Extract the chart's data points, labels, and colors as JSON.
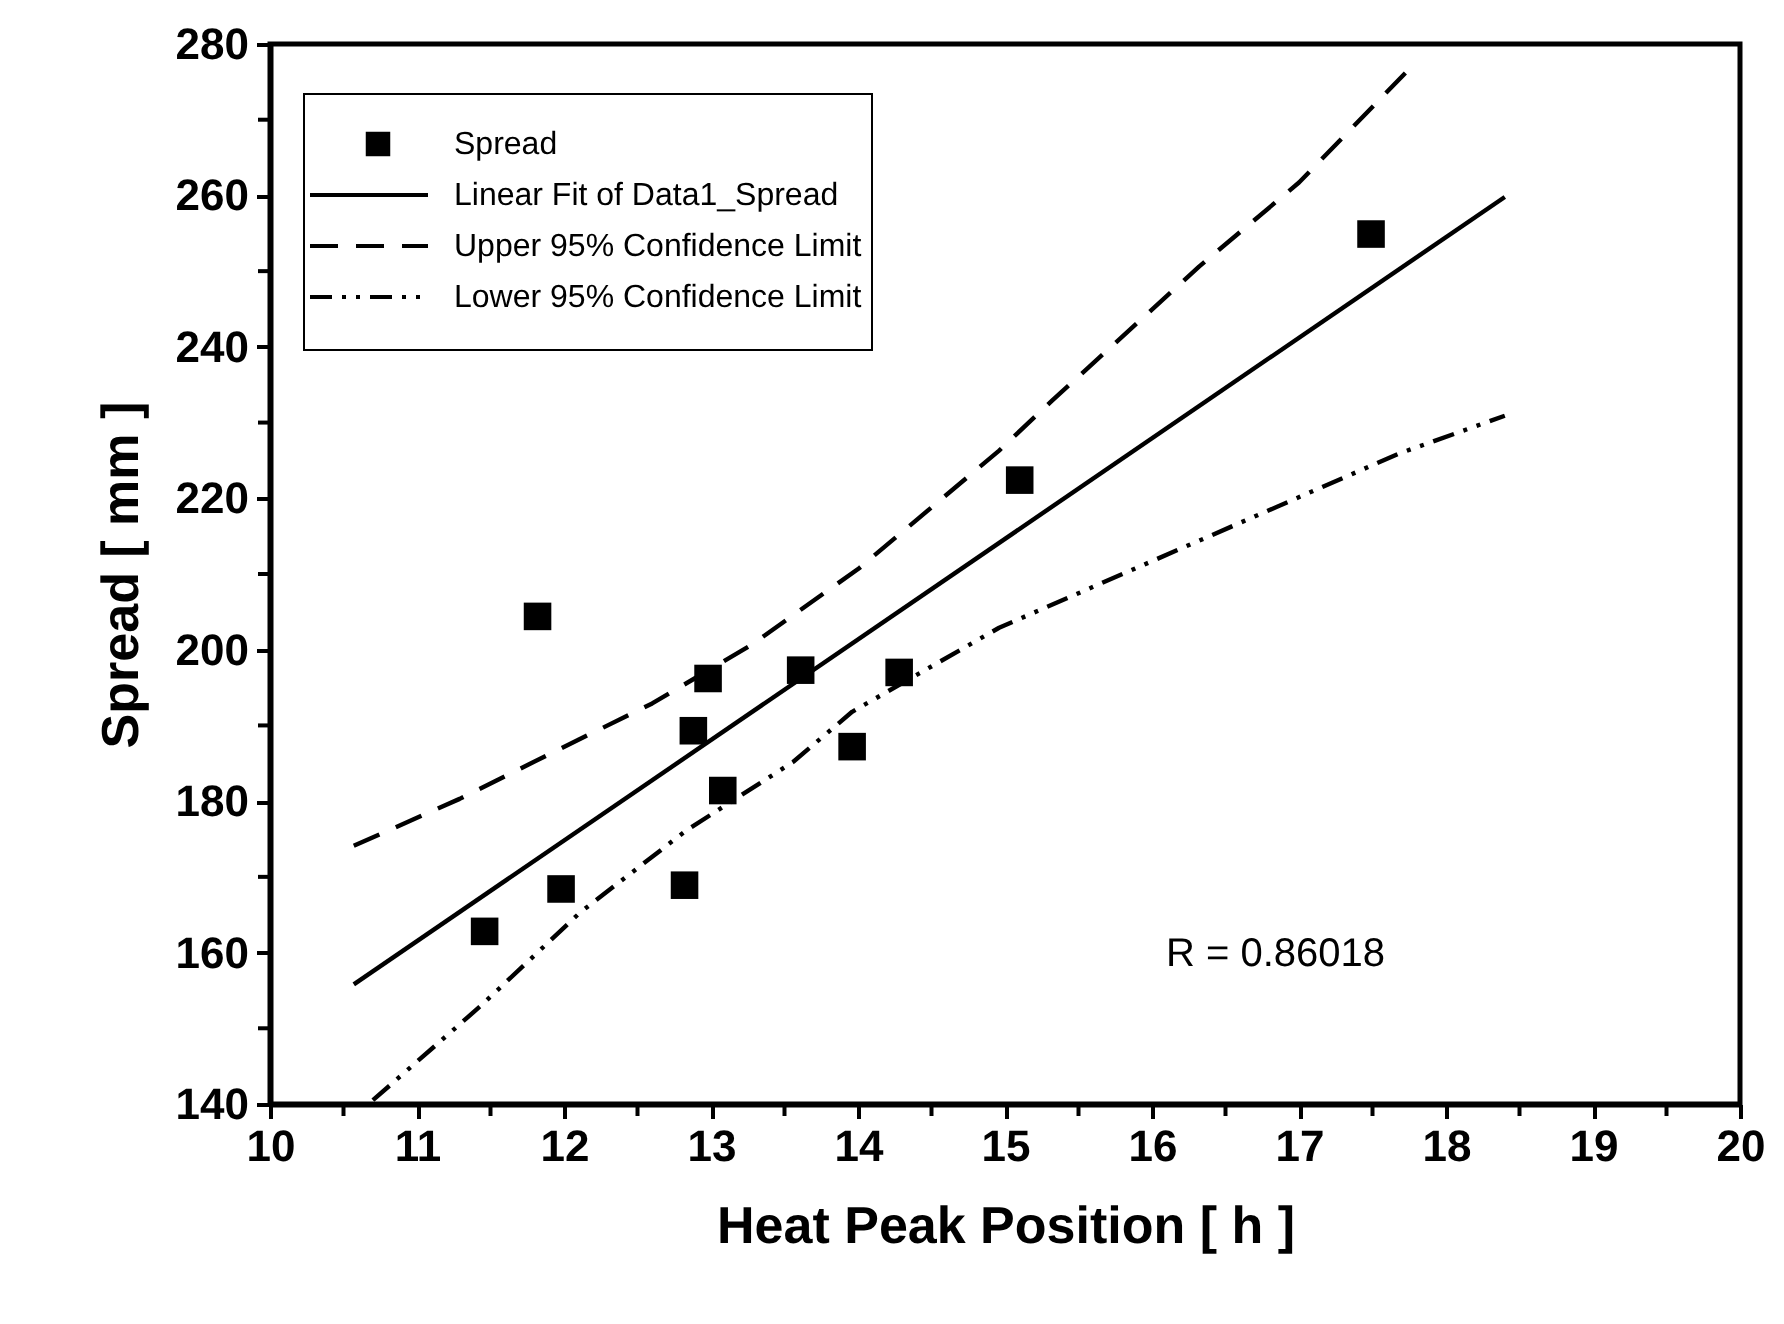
{
  "chart_data": {
    "type": "scatter",
    "xlabel": "Heat Peak Position [ h ]",
    "ylabel": "Spread [ mm ]",
    "xlim": [
      10,
      20
    ],
    "ylim": [
      140,
      280
    ],
    "xticks": [
      10,
      {
        "value": 10.5,
        "label": null
      },
      11,
      {
        "value": 11.5,
        "label": null
      },
      12,
      {
        "value": 12.5,
        "label": null
      },
      13,
      {
        "value": 13.5,
        "label": null
      },
      14,
      {
        "value": 14.5,
        "label": null
      },
      15,
      {
        "value": 15.5,
        "label": null
      },
      16,
      {
        "value": 16.5,
        "label": null
      },
      17,
      {
        "value": 17.5,
        "label": null
      },
      18,
      {
        "value": 18.5,
        "label": null
      },
      19,
      {
        "value": 19.5,
        "label": null
      },
      20
    ],
    "yticks": [
      140,
      {
        "value": 150,
        "label": null
      },
      160,
      {
        "value": 170,
        "label": null
      },
      180,
      {
        "value": 190,
        "label": null
      },
      200,
      {
        "value": 210,
        "label": null
      },
      220,
      {
        "value": 230,
        "label": null
      },
      240,
      {
        "value": 250,
        "label": null
      },
      260,
      {
        "value": 270,
        "label": null
      },
      280
    ],
    "grid": false,
    "legend": "top left",
    "marker": "square",
    "annotations": [
      "R = 0.86018"
    ],
    "series": [
      {
        "name": "Spread",
        "color": "#000000",
        "x": [
          11.46,
          11.82,
          11.98,
          12.82,
          12.88,
          12.98,
          13.08,
          13.61,
          13.96,
          14.28,
          15.1,
          17.49
        ],
        "values": [
          162.8,
          204.4,
          168.4,
          168.9,
          189.3,
          196.2,
          181.4,
          197.3,
          187.2,
          197.0,
          222.4,
          254.9
        ]
      },
      {
        "name": "Linear Fit of Data1_Spread",
        "type": "line",
        "line_style": "solid",
        "marker": "none",
        "color": "#000000",
        "x": [
          10.57,
          18.4
        ],
        "values": [
          155.8,
          259.8
        ]
      },
      {
        "name": "Upper 95% Confidence Limit",
        "type": "line",
        "line_style": "dashed",
        "marker": "none",
        "color": "#000000",
        "x": [
          10.57,
          11.29,
          11.93,
          12.6,
          13.28,
          14.01,
          14.96,
          15.32,
          16.32,
          17.0,
          17.74
        ],
        "values": [
          174.1,
          180.3,
          186.5,
          192.9,
          200.7,
          210.8,
          226.3,
          232.9,
          250.6,
          261.7,
          276.5
        ]
      },
      {
        "name": "Lower 95% Confidence Limit",
        "type": "line",
        "line_style": "dashdot",
        "marker": "none",
        "color": "#000000",
        "x": [
          10.7,
          11.43,
          12.11,
          12.83,
          13.56,
          13.96,
          14.96,
          16.32,
          17.68,
          18.4
        ],
        "values": [
          140.5,
          152.9,
          165.3,
          176.1,
          185.2,
          191.8,
          202.9,
          214.4,
          225.9,
          230.9
        ]
      }
    ]
  }
}
